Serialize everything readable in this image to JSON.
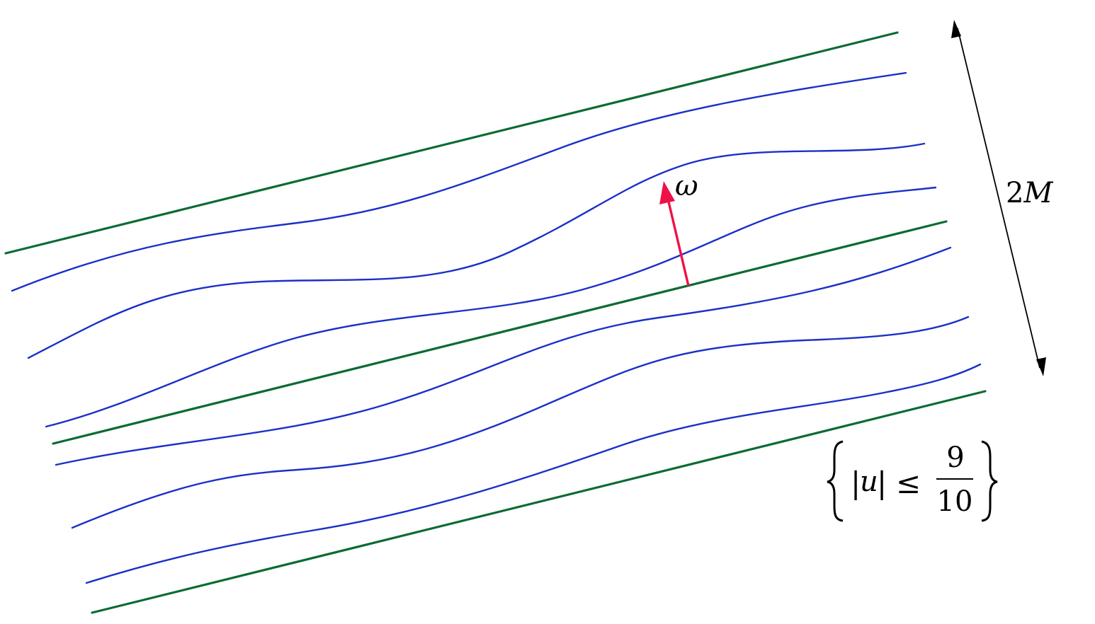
{
  "diagram": {
    "omega_label": "ω",
    "width_label_number": "2",
    "width_label_var": "M",
    "set_label": {
      "abs_open": "|",
      "var": "u",
      "abs_close": "|",
      "relation": "≤",
      "numerator": "9",
      "denominator": "10"
    },
    "colors": {
      "green_lines": "#0b6b34",
      "blue_curves": "#1a30c8",
      "normal_arrow": "#ee1148",
      "dimension_arrow": "#000000"
    }
  }
}
